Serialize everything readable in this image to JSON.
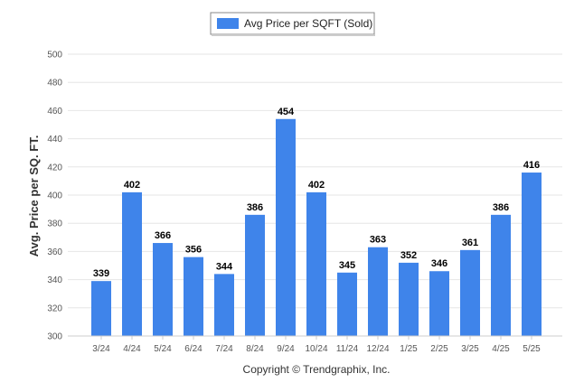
{
  "chart_data": {
    "type": "bar",
    "categories": [
      "3/24",
      "4/24",
      "5/24",
      "6/24",
      "7/24",
      "8/24",
      "9/24",
      "10/24",
      "11/24",
      "12/24",
      "1/25",
      "2/25",
      "3/25",
      "4/25",
      "5/25"
    ],
    "series": [
      {
        "name": "Avg Price per SQFT (Sold)",
        "values": [
          339,
          402,
          366,
          356,
          344,
          386,
          454,
          402,
          345,
          363,
          352,
          346,
          361,
          386,
          416
        ]
      }
    ],
    "ylabel": "Avg. Price per SQ. FT.",
    "xlabel": "",
    "ylim": [
      300,
      500
    ],
    "yticks": [
      300,
      320,
      340,
      360,
      380,
      400,
      420,
      440,
      460,
      480,
      500
    ],
    "grid": true,
    "legend": "top-center",
    "bar_color": "#3f84ea",
    "data_labels": true
  },
  "footer": {
    "copyright": "Copyright © Trendgraphix, Inc."
  }
}
